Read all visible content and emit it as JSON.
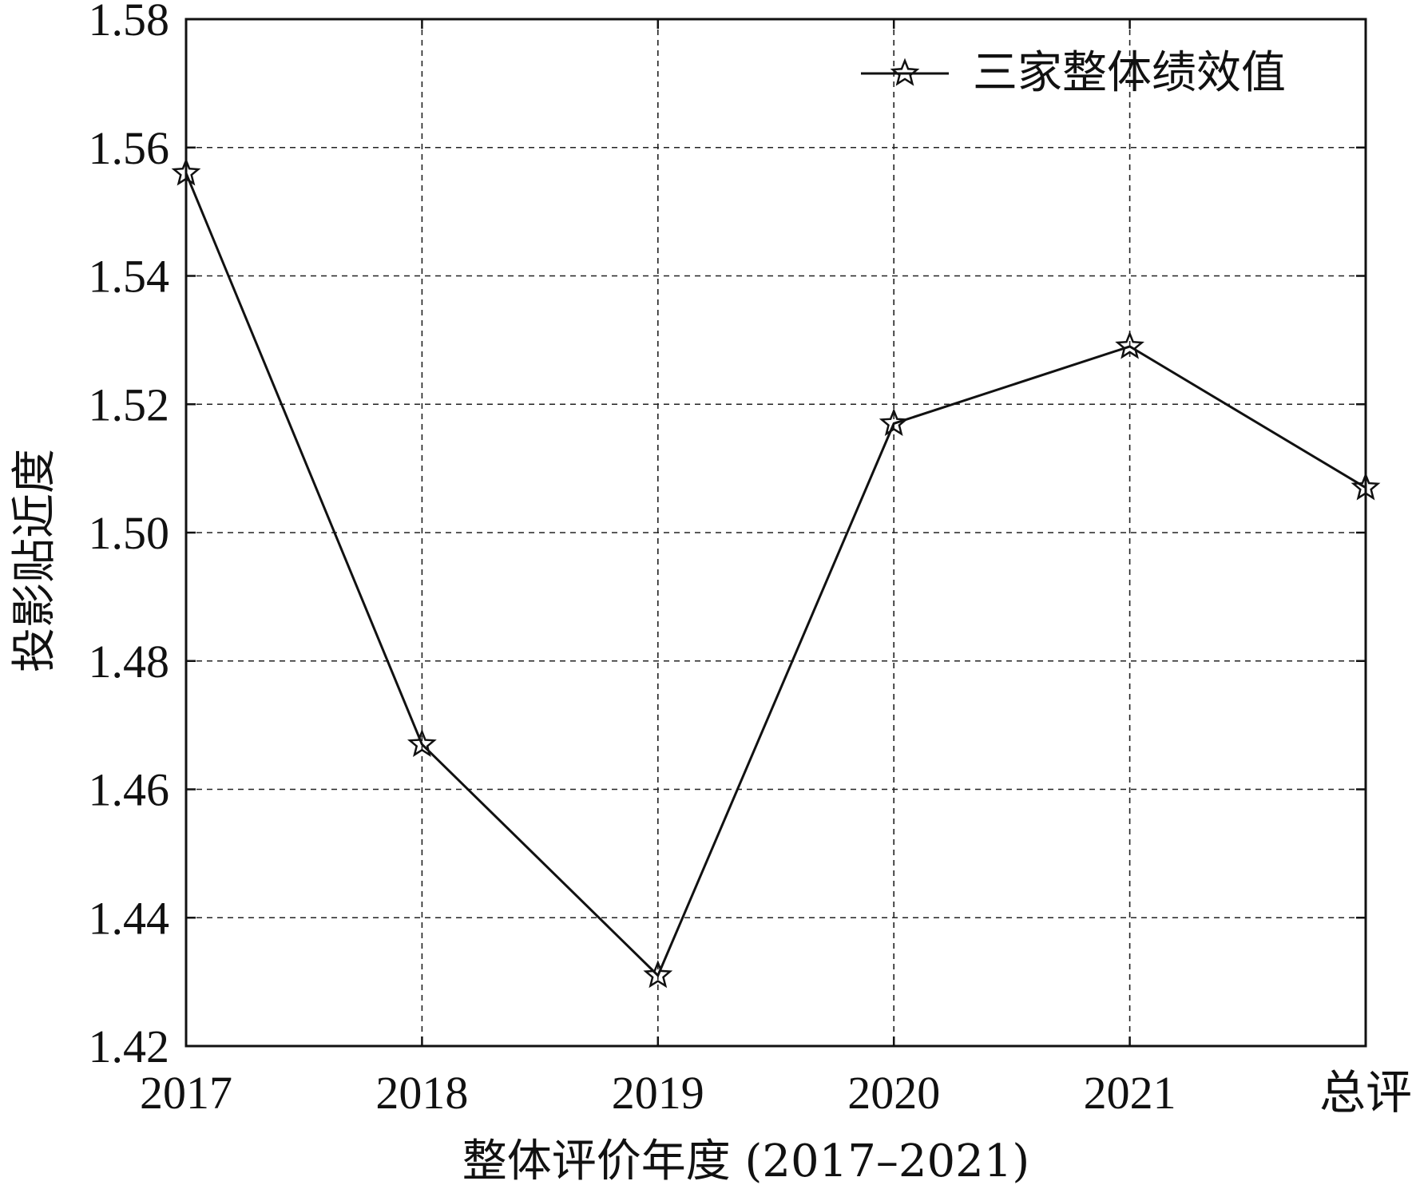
{
  "chart_data": {
    "type": "line",
    "categories": [
      "2017",
      "2018",
      "2019",
      "2020",
      "2021",
      "总评"
    ],
    "series": [
      {
        "name": "三家整体绩效值",
        "values": [
          1.556,
          1.467,
          1.431,
          1.517,
          1.529,
          1.507
        ],
        "marker": "star",
        "color": "#111111"
      }
    ],
    "xlabel": "整体评价年度 (2017–2021)",
    "ylabel": "投影贴近度",
    "ylim": [
      1.42,
      1.58
    ],
    "yticks": [
      1.42,
      1.44,
      1.46,
      1.48,
      1.5,
      1.52,
      1.54,
      1.56,
      1.58
    ],
    "ytick_labels": [
      "1.42",
      "1.44",
      "1.46",
      "1.48",
      "1.50",
      "1.52",
      "1.54",
      "1.56",
      "1.58"
    ],
    "grid": true,
    "legend_position": "top-right"
  }
}
